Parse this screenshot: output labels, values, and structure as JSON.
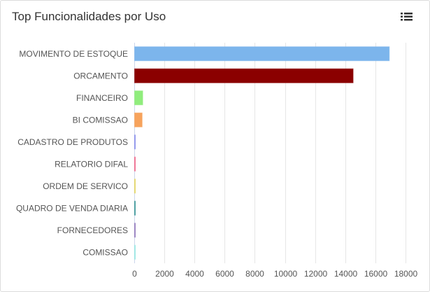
{
  "header": {
    "title": "Top Funcionalidades por Uso",
    "menu_icon": "list-menu-icon"
  },
  "chart_data": {
    "type": "bar",
    "orientation": "horizontal",
    "categories": [
      "MOVIMENTO DE ESTOQUE",
      "ORCAMENTO",
      "FINANCEIRO",
      "BI COMISSAO",
      "CADASTRO DE PRODUTOS",
      "RELATORIO DIFAL",
      "ORDEM DE SERVICO",
      "QUADRO DE VENDA DIARIA",
      "FORNECEDORES",
      "COMISSAO"
    ],
    "values": [
      16900,
      14500,
      540,
      500,
      40,
      30,
      25,
      20,
      15,
      10
    ],
    "colors": [
      "#7cb5ec",
      "#8b0000",
      "#90ed7d",
      "#f7a35c",
      "#8085e9",
      "#f15c80",
      "#e4d354",
      "#2b908f",
      "#8b6fb8",
      "#91e8e1"
    ],
    "xlim": [
      0,
      18000
    ],
    "xticks": [
      0,
      2000,
      4000,
      6000,
      8000,
      10000,
      12000,
      14000,
      16000,
      18000
    ],
    "title": "Top Funcionalidades por Uso",
    "xlabel": "",
    "ylabel": "",
    "grid": true,
    "legend": false
  }
}
